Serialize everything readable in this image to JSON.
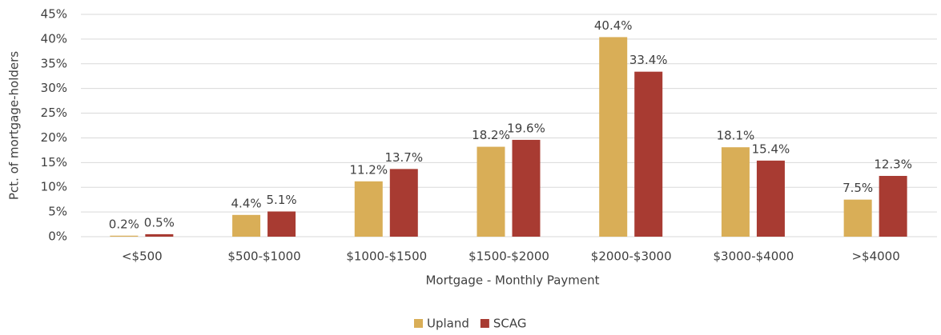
{
  "chart_data": {
    "type": "bar",
    "x_label": "Mortgage - Monthly Payment",
    "y_label": "Pct. of mortgage-holders",
    "categories": [
      "<$500",
      "$500-$1000",
      "$1000-$1500",
      "$1500-$2000",
      "$2000-$3000",
      "$3000-$4000",
      ">$4000"
    ],
    "series": [
      {
        "name": "Upland",
        "color": "#d9ae57",
        "values": [
          0.2,
          4.4,
          11.2,
          18.2,
          40.4,
          18.1,
          7.5
        ],
        "value_labels": [
          "0.2%",
          "4.4%",
          "11.2%",
          "18.2%",
          "40.4%",
          "18.1%",
          "7.5%"
        ]
      },
      {
        "name": "SCAG",
        "color": "#a83b32",
        "values": [
          0.5,
          5.1,
          13.7,
          19.6,
          33.4,
          15.4,
          12.3
        ],
        "value_labels": [
          "0.5%",
          "5.1%",
          "13.7%",
          "19.6%",
          "33.4%",
          "15.4%",
          "12.3%"
        ]
      }
    ],
    "ylim": [
      0,
      45
    ],
    "yticks": [
      {
        "value": 0,
        "label": "0%"
      },
      {
        "value": 5,
        "label": "5%"
      },
      {
        "value": 10,
        "label": "10%"
      },
      {
        "value": 15,
        "label": "15%"
      },
      {
        "value": 20,
        "label": "20%"
      },
      {
        "value": 25,
        "label": "25%"
      },
      {
        "value": 30,
        "label": "30%"
      },
      {
        "value": 35,
        "label": "35%"
      },
      {
        "value": 40,
        "label": "40%"
      },
      {
        "value": 45,
        "label": "45%"
      }
    ],
    "grid": true,
    "legend": "bottom"
  }
}
